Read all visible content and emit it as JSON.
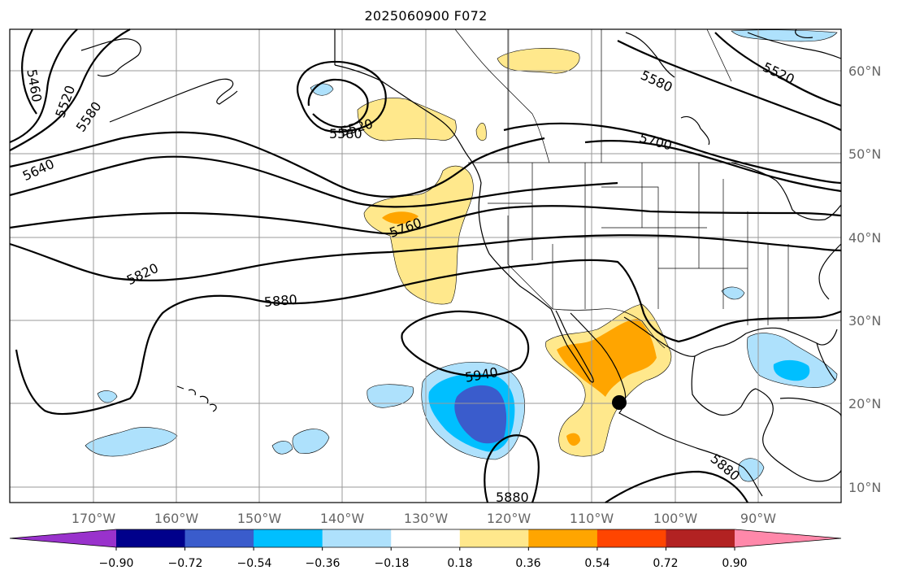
{
  "title": "2025060900 F072",
  "map": {
    "lon_labels": [
      "170°W",
      "160°W",
      "150°W",
      "140°W",
      "130°W",
      "120°W",
      "110°W",
      "100°W",
      "90°W"
    ],
    "lat_labels": [
      "60°N",
      "50°N",
      "40°N",
      "30°N",
      "20°N",
      "10°N"
    ],
    "contour_labels": [
      "5460",
      "5520",
      "5580",
      "5640",
      "5520",
      "5580",
      "5580",
      "5520",
      "5700",
      "5760",
      "5820",
      "5880",
      "5940",
      "5880",
      "5880"
    ],
    "marker": "black-dot"
  },
  "colorbar": {
    "colors": [
      "#9932cc",
      "#00008b",
      "#3a5ccc",
      "#00bfff",
      "#aee1fc",
      "#ffffff",
      "#ffe88c",
      "#ffa500",
      "#ff4500",
      "#b22222",
      "#ff88aa"
    ],
    "tick_labels": [
      "−0.90",
      "−0.72",
      "−0.54",
      "−0.36",
      "−0.18",
      "0.18",
      "0.36",
      "0.54",
      "0.72",
      "0.90"
    ]
  }
}
